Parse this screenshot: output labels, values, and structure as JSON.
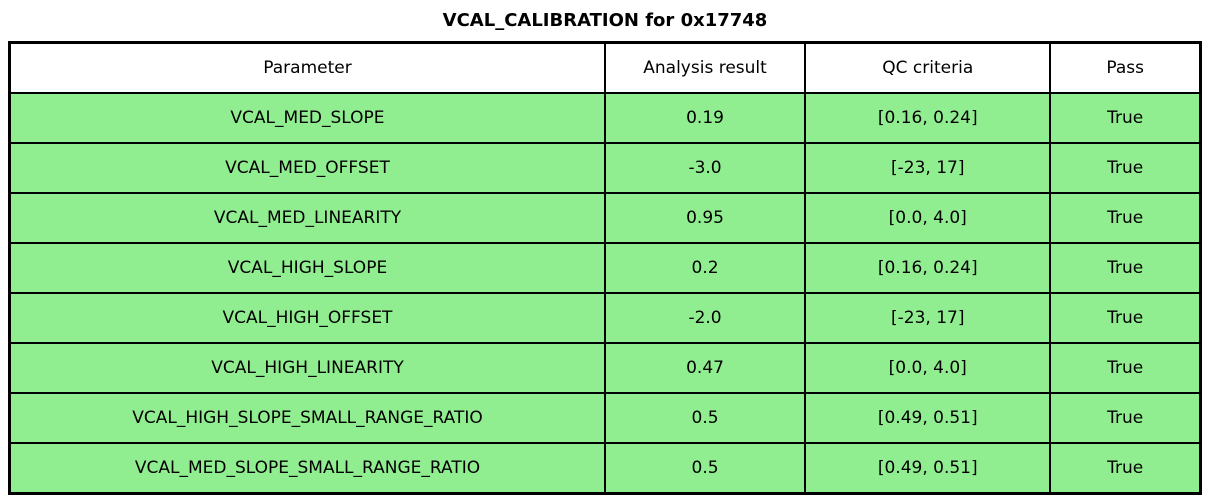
{
  "title": "VCAL_CALIBRATION for 0x17748",
  "colors": {
    "row_background": "#90EE90",
    "header_background": "#FFFFFF",
    "border": "#000000",
    "text": "#000000"
  },
  "table": {
    "headers": [
      "Parameter",
      "Analysis result",
      "QC criteria",
      "Pass"
    ],
    "rows": [
      [
        "VCAL_MED_SLOPE",
        "0.19",
        "[0.16, 0.24]",
        "True"
      ],
      [
        "VCAL_MED_OFFSET",
        "-3.0",
        "[-23, 17]",
        "True"
      ],
      [
        "VCAL_MED_LINEARITY",
        "0.95",
        "[0.0, 4.0]",
        "True"
      ],
      [
        "VCAL_HIGH_SLOPE",
        "0.2",
        "[0.16, 0.24]",
        "True"
      ],
      [
        "VCAL_HIGH_OFFSET",
        "-2.0",
        "[-23, 17]",
        "True"
      ],
      [
        "VCAL_HIGH_LINEARITY",
        "0.47",
        "[0.0, 4.0]",
        "True"
      ],
      [
        "VCAL_HIGH_SLOPE_SMALL_RANGE_RATIO",
        "0.5",
        "[0.49, 0.51]",
        "True"
      ],
      [
        "VCAL_MED_SLOPE_SMALL_RANGE_RATIO",
        "0.5",
        "[0.49, 0.51]",
        "True"
      ]
    ]
  },
  "chart_data": {
    "type": "table",
    "title": "VCAL_CALIBRATION for 0x17748",
    "columns": [
      "Parameter",
      "Analysis result",
      "QC criteria",
      "Pass"
    ],
    "rows": [
      {
        "parameter": "VCAL_MED_SLOPE",
        "analysis_result": 0.19,
        "qc_criteria": "[0.16, 0.24]",
        "pass": true
      },
      {
        "parameter": "VCAL_MED_OFFSET",
        "analysis_result": -3.0,
        "qc_criteria": "[-23, 17]",
        "pass": true
      },
      {
        "parameter": "VCAL_MED_LINEARITY",
        "analysis_result": 0.95,
        "qc_criteria": "[0.0, 4.0]",
        "pass": true
      },
      {
        "parameter": "VCAL_HIGH_SLOPE",
        "analysis_result": 0.2,
        "qc_criteria": "[0.16, 0.24]",
        "pass": true
      },
      {
        "parameter": "VCAL_HIGH_OFFSET",
        "analysis_result": -2.0,
        "qc_criteria": "[-23, 17]",
        "pass": true
      },
      {
        "parameter": "VCAL_HIGH_LINEARITY",
        "analysis_result": 0.47,
        "qc_criteria": "[0.0, 4.0]",
        "pass": true
      },
      {
        "parameter": "VCAL_HIGH_SLOPE_SMALL_RANGE_RATIO",
        "analysis_result": 0.5,
        "qc_criteria": "[0.49, 0.51]",
        "pass": true
      },
      {
        "parameter": "VCAL_MED_SLOPE_SMALL_RANGE_RATIO",
        "analysis_result": 0.5,
        "qc_criteria": "[0.49, 0.51]",
        "pass": true
      }
    ],
    "layout": {
      "title_position": "top-center",
      "header_row": true,
      "cell_alignment": "center"
    }
  }
}
